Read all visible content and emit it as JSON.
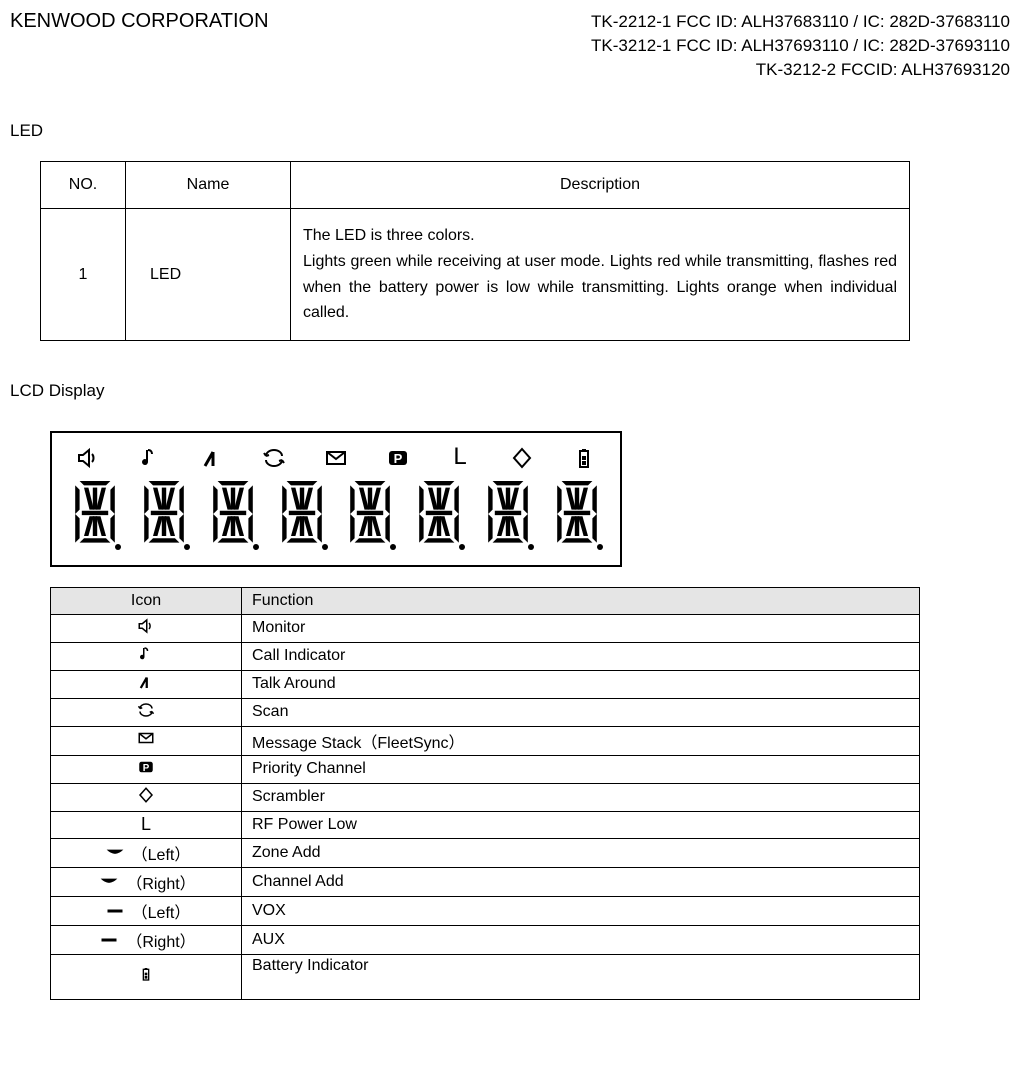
{
  "header": {
    "company": "KENWOOD CORPORATION",
    "id_lines": [
      "TK-2212-1 FCC ID: ALH37683110 / IC: 282D-37683110",
      "TK-3212-1 FCC ID: ALH37693110 / IC: 282D-37693110",
      "TK-3212-2 FCCID: ALH37693120"
    ]
  },
  "led_section": {
    "title": "LED",
    "columns": [
      "NO.",
      "Name",
      "Description"
    ],
    "row": {
      "no": "1",
      "name": "LED",
      "desc": "The LED is three colors.\nLights green while receiving at user mode. Lights red while transmitting, flashes red when the battery power is low while transmitting. Lights orange when individual called."
    }
  },
  "lcd_section": {
    "title": "LCD Display",
    "top_icons": [
      "speaker",
      "note",
      "antenna",
      "scan",
      "envelope",
      "priority",
      "L_text",
      "diamond",
      "battery"
    ],
    "L_label": "L",
    "digit_count": 8,
    "table": {
      "headers": [
        "Icon",
        "Function"
      ],
      "rows": [
        {
          "icon": "speaker",
          "side": "",
          "label": "Monitor"
        },
        {
          "icon": "note",
          "side": "",
          "label": "Call Indicator"
        },
        {
          "icon": "antenna",
          "side": "",
          "label": "Talk Around"
        },
        {
          "icon": "scan",
          "side": "",
          "label": "Scan"
        },
        {
          "icon": "envelope",
          "side": "",
          "label": "Message Stack（FleetSync）"
        },
        {
          "icon": "priority",
          "side": "",
          "label": "Priority Channel"
        },
        {
          "icon": "diamond",
          "side": "",
          "label": "Scrambler"
        },
        {
          "icon": "L_text",
          "side": "",
          "label": "RF Power Low"
        },
        {
          "icon": "caret",
          "side": "（Left）",
          "label": "Zone Add"
        },
        {
          "icon": "caret",
          "side": "（Right）",
          "label": "Channel Add"
        },
        {
          "icon": "dash",
          "side": "（Left）",
          "label": "VOX"
        },
        {
          "icon": "dash",
          "side": "（Right）",
          "label": "AUX"
        },
        {
          "icon": "battery",
          "side": "",
          "label": "Battery Indicator"
        }
      ]
    }
  },
  "colors": {
    "text": "#000000",
    "bg": "#ffffff",
    "header_bg": "#e5e5e5",
    "border": "#000000"
  }
}
